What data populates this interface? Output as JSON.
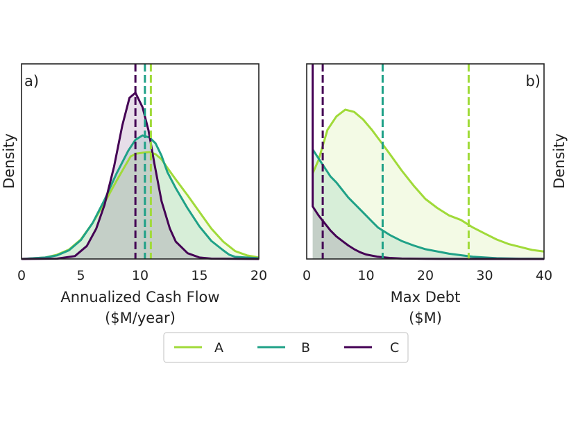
{
  "chart_data": [
    {
      "type": "area",
      "panel_tag": "a)",
      "title": "",
      "xlabel_line1": "Annualized Cash Flow",
      "xlabel_line2": "($M/year)",
      "ylabel": "Density",
      "ylabel_side": "left",
      "xlim": [
        0,
        20
      ],
      "ylim": [
        0,
        0.27
      ],
      "xticks": [
        0,
        5,
        10,
        15,
        20
      ],
      "xtick_labels": [
        "0",
        "5",
        "10",
        "15",
        "20"
      ],
      "series": [
        {
          "name": "A",
          "color": "#a0da39",
          "mean": 10.9,
          "points": [
            [
              0,
              0
            ],
            [
              2,
              0.002
            ],
            [
              3,
              0.006
            ],
            [
              4,
              0.013
            ],
            [
              5,
              0.027
            ],
            [
              6,
              0.05
            ],
            [
              7,
              0.078
            ],
            [
              8,
              0.108
            ],
            [
              8.7,
              0.128
            ],
            [
              9.2,
              0.142
            ],
            [
              9.7,
              0.146
            ],
            [
              10.2,
              0.147
            ],
            [
              10.8,
              0.148
            ],
            [
              11.3,
              0.145
            ],
            [
              11.8,
              0.138
            ],
            [
              12.3,
              0.126
            ],
            [
              13,
              0.11
            ],
            [
              14,
              0.088
            ],
            [
              15,
              0.065
            ],
            [
              16,
              0.042
            ],
            [
              17,
              0.024
            ],
            [
              18,
              0.011
            ],
            [
              19,
              0.005
            ],
            [
              20,
              0.002
            ]
          ]
        },
        {
          "name": "B",
          "color": "#1fa187",
          "mean": 10.4,
          "points": [
            [
              0,
              0
            ],
            [
              2,
              0.002
            ],
            [
              3,
              0.005
            ],
            [
              4,
              0.012
            ],
            [
              5,
              0.026
            ],
            [
              6,
              0.05
            ],
            [
              7,
              0.082
            ],
            [
              8,
              0.118
            ],
            [
              9,
              0.15
            ],
            [
              9.6,
              0.165
            ],
            [
              10.2,
              0.171
            ],
            [
              10.8,
              0.168
            ],
            [
              11.3,
              0.16
            ],
            [
              11.8,
              0.143
            ],
            [
              12.3,
              0.12
            ],
            [
              13,
              0.098
            ],
            [
              14,
              0.07
            ],
            [
              15,
              0.045
            ],
            [
              16,
              0.025
            ],
            [
              17,
              0.012
            ],
            [
              17.5,
              0.006
            ],
            [
              18,
              0.003
            ],
            [
              20,
              0.001
            ]
          ]
        },
        {
          "name": "C",
          "color": "#440154",
          "mean": 9.6,
          "points": [
            [
              0,
              0
            ],
            [
              3,
              0.0005
            ],
            [
              4.5,
              0.004
            ],
            [
              5.5,
              0.018
            ],
            [
              6.3,
              0.042
            ],
            [
              7,
              0.075
            ],
            [
              7.8,
              0.128
            ],
            [
              8.5,
              0.185
            ],
            [
              9.1,
              0.223
            ],
            [
              9.6,
              0.23
            ],
            [
              10.2,
              0.21
            ],
            [
              10.7,
              0.178
            ],
            [
              11.2,
              0.132
            ],
            [
              11.8,
              0.08
            ],
            [
              12.5,
              0.042
            ],
            [
              13,
              0.024
            ],
            [
              14,
              0.008
            ],
            [
              15,
              0.002
            ],
            [
              16,
              0.0005
            ],
            [
              20,
              0
            ]
          ]
        }
      ]
    },
    {
      "type": "area",
      "panel_tag": "b)",
      "title": "",
      "xlabel_line1": "Max Debt",
      "xlabel_line2": "($M)",
      "ylabel": "Density",
      "ylabel_side": "right",
      "xlim": [
        0,
        40
      ],
      "ylim": [
        0,
        0.13
      ],
      "xticks": [
        0,
        10,
        20,
        30,
        40
      ],
      "xtick_labels": [
        "0",
        "10",
        "20",
        "30",
        "40"
      ],
      "series": [
        {
          "name": "A",
          "color": "#a0da39",
          "mean": 27.3,
          "points": [
            [
              1,
              0.057
            ],
            [
              2,
              0.066
            ],
            [
              3.5,
              0.086
            ],
            [
              5,
              0.095
            ],
            [
              6.5,
              0.0995
            ],
            [
              8,
              0.098
            ],
            [
              9.5,
              0.093
            ],
            [
              11,
              0.086
            ],
            [
              12.5,
              0.078
            ],
            [
              14,
              0.07
            ],
            [
              16,
              0.059
            ],
            [
              18,
              0.049
            ],
            [
              20,
              0.04
            ],
            [
              22,
              0.034
            ],
            [
              24,
              0.029
            ],
            [
              26,
              0.026
            ],
            [
              28,
              0.021
            ],
            [
              30,
              0.017
            ],
            [
              32,
              0.013
            ],
            [
              34,
              0.01
            ],
            [
              36,
              0.008
            ],
            [
              38,
              0.006
            ],
            [
              40,
              0.005
            ]
          ]
        },
        {
          "name": "B",
          "color": "#1fa187",
          "mean": 12.8,
          "points": [
            [
              1,
              0.073
            ],
            [
              2,
              0.067
            ],
            [
              3,
              0.061
            ],
            [
              4,
              0.055
            ],
            [
              5,
              0.051
            ],
            [
              6,
              0.046
            ],
            [
              7,
              0.041
            ],
            [
              8,
              0.037
            ],
            [
              9,
              0.033
            ],
            [
              10,
              0.029
            ],
            [
              11,
              0.025
            ],
            [
              12,
              0.021
            ],
            [
              14,
              0.016
            ],
            [
              16,
              0.012
            ],
            [
              18,
              0.009
            ],
            [
              20,
              0.0065
            ],
            [
              24,
              0.0035
            ],
            [
              28,
              0.0015
            ],
            [
              32,
              0.0005
            ],
            [
              36,
              0.0002
            ],
            [
              40,
              0.0001
            ]
          ]
        },
        {
          "name": "C",
          "color": "#440154",
          "mean": 2.7,
          "points": [
            [
              1,
              0.13
            ],
            [
              1.001,
              0.035
            ],
            [
              2,
              0.029
            ],
            [
              3,
              0.024
            ],
            [
              4,
              0.019
            ],
            [
              5,
              0.015
            ],
            [
              6,
              0.012
            ],
            [
              7,
              0.009
            ],
            [
              8,
              0.0065
            ],
            [
              9,
              0.0045
            ],
            [
              10,
              0.003
            ],
            [
              12,
              0.0015
            ],
            [
              14,
              0.0007
            ],
            [
              16,
              0.0003
            ],
            [
              20,
              0.0001
            ],
            [
              40,
              0
            ]
          ]
        }
      ]
    }
  ],
  "legend": {
    "placement": "bottom-center",
    "entries": [
      {
        "label": "A",
        "color": "#a0da39"
      },
      {
        "label": "B",
        "color": "#1fa187"
      },
      {
        "label": "C",
        "color": "#440154"
      }
    ]
  }
}
